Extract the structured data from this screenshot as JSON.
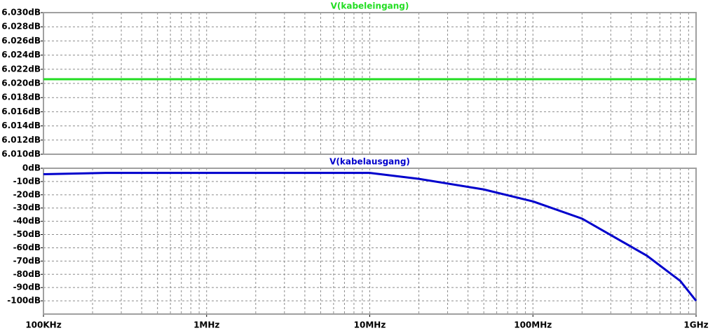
{
  "chart_data": [
    {
      "type": "line",
      "log_x": true,
      "grid": true,
      "x": [
        100000,
        1000000000
      ],
      "series": [
        {
          "name": "V(kabeleingang)",
          "color": "#22dd22",
          "values": [
            6.0206,
            6.0206
          ]
        }
      ],
      "xlim": [
        100000,
        1000000000
      ],
      "ylim": [
        6.01,
        6.03
      ],
      "yticks": [
        {
          "value": 6.01,
          "label": "6.010dB"
        },
        {
          "value": 6.012,
          "label": "6.012dB"
        },
        {
          "value": 6.014,
          "label": "6.014dB"
        },
        {
          "value": 6.016,
          "label": "6.016dB"
        },
        {
          "value": 6.018,
          "label": "6.018dB"
        },
        {
          "value": 6.02,
          "label": "6.020dB"
        },
        {
          "value": 6.022,
          "label": "6.022dB"
        },
        {
          "value": 6.024,
          "label": "6.024dB"
        },
        {
          "value": 6.026,
          "label": "6.026dB"
        },
        {
          "value": 6.028,
          "label": "6.028dB"
        },
        {
          "value": 6.03,
          "label": "6.030dB"
        }
      ]
    },
    {
      "type": "line",
      "log_x": true,
      "grid": true,
      "x": [
        100000,
        240000,
        1000000,
        10000000,
        20000000,
        50000000,
        100000000,
        200000000,
        500000000,
        800000000,
        1000000000
      ],
      "series": [
        {
          "name": "V(kabelausgang)",
          "color": "#0000cc",
          "values": [
            -4.5,
            -3.5,
            -3.5,
            -3.5,
            -8,
            -16,
            -25,
            -38,
            -66,
            -85,
            -100
          ]
        }
      ],
      "xlim": [
        100000,
        1000000000
      ],
      "ylim": [
        -110,
        0
      ],
      "xticks": [
        {
          "value": 100000,
          "label": "100KHz"
        },
        {
          "value": 1000000,
          "label": "1MHz"
        },
        {
          "value": 10000000,
          "label": "10MHz"
        },
        {
          "value": 100000000,
          "label": "100MHz"
        },
        {
          "value": 1000000000,
          "label": "1GHz"
        }
      ],
      "yticks": [
        {
          "value": 0,
          "label": "0dB"
        },
        {
          "value": -10,
          "label": "-10dB"
        },
        {
          "value": -20,
          "label": "-20dB"
        },
        {
          "value": -30,
          "label": "-30dB"
        },
        {
          "value": -40,
          "label": "-40dB"
        },
        {
          "value": -50,
          "label": "-50dB"
        },
        {
          "value": -60,
          "label": "-60dB"
        },
        {
          "value": -70,
          "label": "-70dB"
        },
        {
          "value": -80,
          "label": "-80dB"
        },
        {
          "value": -90,
          "label": "-90dB"
        },
        {
          "value": -100,
          "label": "-100dB"
        }
      ]
    }
  ]
}
